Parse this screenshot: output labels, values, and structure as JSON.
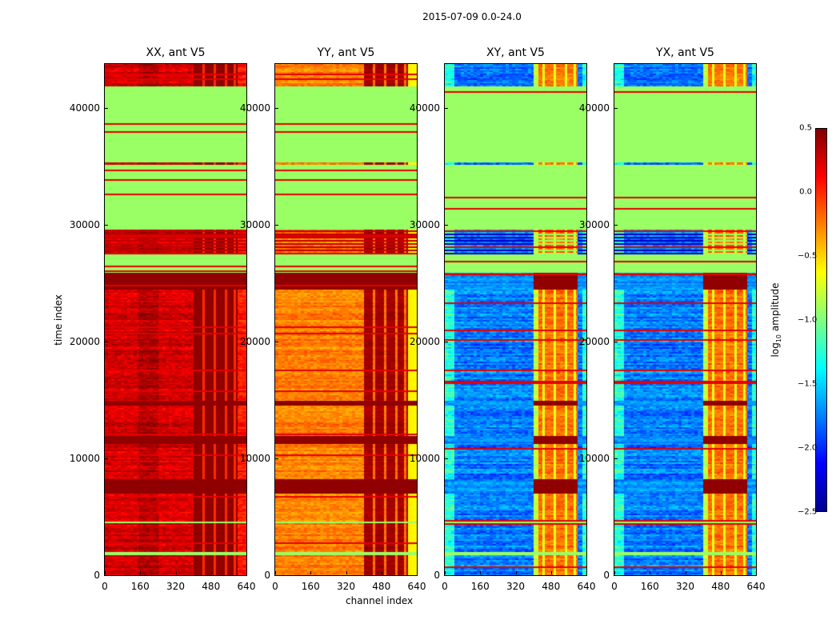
{
  "figure_title": "2015-07-09 0.0-24.0",
  "chart_data": [
    {
      "type": "heatmap",
      "title": "XX, ant V5",
      "xlabel": "",
      "ylabel": "time index",
      "xlim": [
        0,
        640
      ],
      "ylim": [
        0,
        43800
      ]
    },
    {
      "type": "heatmap",
      "title": "YY, ant V5",
      "xlabel": "channel index",
      "ylabel": "",
      "xlim": [
        0,
        640
      ],
      "ylim": [
        0,
        43800
      ]
    },
    {
      "type": "heatmap",
      "title": "XY, ant V5",
      "xlabel": "",
      "ylabel": "",
      "xlim": [
        0,
        640
      ],
      "ylim": [
        0,
        43800
      ]
    },
    {
      "type": "heatmap",
      "title": "YX, ant V5",
      "xlabel": "",
      "ylabel": "",
      "xlim": [
        0,
        640
      ],
      "ylim": [
        0,
        43800
      ]
    }
  ],
  "axes": {
    "xticks": [
      "0",
      "160",
      "320",
      "480",
      "640"
    ],
    "xtick_values": [
      0,
      160,
      320,
      480,
      640
    ],
    "yticks": [
      "0",
      "10000",
      "20000",
      "30000",
      "40000"
    ],
    "ytick_values": [
      0,
      10000,
      20000,
      30000,
      40000
    ],
    "xlabel": "channel index",
    "ylabel": "time index"
  },
  "colorbar": {
    "label_main": "log",
    "label_sub": "10",
    "label_rest": " amplitude",
    "range": [
      -2.5,
      0.5
    ],
    "ticks": [
      "0.5",
      "0.0",
      "−0.5",
      "−1.0",
      "−1.5",
      "−2.0",
      "−2.5"
    ],
    "tick_values": [
      0.5,
      0.0,
      -0.5,
      -1.0,
      -1.5,
      -2.0,
      -2.5
    ],
    "colormap": "jet"
  },
  "flagged_time_ranges": [
    [
      35400,
      41900
    ],
    [
      32300,
      35200
    ],
    [
      29600,
      32300
    ],
    [
      25900,
      27500
    ],
    [
      1700,
      1950
    ],
    [
      4400,
      4550
    ]
  ],
  "hot_time_ranges": [
    [
      24500,
      25900
    ],
    [
      7000,
      8200
    ],
    [
      11200,
      11900
    ],
    [
      14500,
      14900
    ]
  ]
}
